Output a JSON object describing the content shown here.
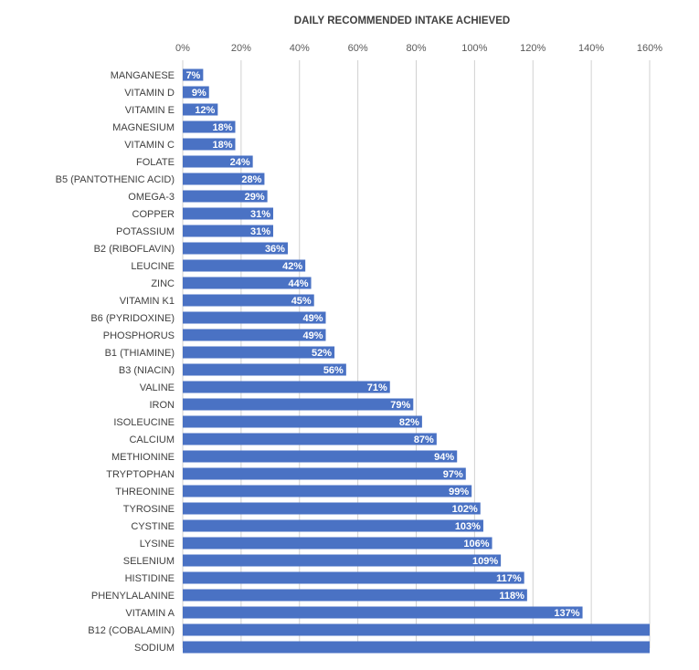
{
  "chart_data": {
    "type": "bar",
    "orientation": "horizontal",
    "title": "DAILY RECOMMENDED INTAKE ACHIEVED",
    "xlabel": "",
    "ylabel": "",
    "xlim": [
      0,
      160
    ],
    "x_ticks": [
      "0%",
      "20%",
      "40%",
      "60%",
      "80%",
      "100%",
      "120%",
      "140%",
      "160%"
    ],
    "grid": true,
    "legend": "none",
    "bar_color": "#4a72c4",
    "categories": [
      "MANGANESE",
      "VITAMIN D",
      "VITAMIN E",
      "MAGNESIUM",
      "VITAMIN C",
      "FOLATE",
      "B5 (PANTOTHENIC ACID)",
      "OMEGA-3",
      "COPPER",
      "POTASSIUM",
      "B2 (RIBOFLAVIN)",
      "LEUCINE",
      "ZINC",
      "VITAMIN K1",
      "B6 (PYRIDOXINE)",
      "PHOSPHORUS",
      "B1 (THIAMINE)",
      "B3 (NIACIN)",
      "VALINE",
      "IRON",
      "ISOLEUCINE",
      "CALCIUM",
      "METHIONINE",
      "TRYPTOPHAN",
      "THREONINE",
      "TYROSINE",
      "CYSTINE",
      "LYSINE",
      "SELENIUM",
      "HISTIDINE",
      "PHENYLALANINE",
      "VITAMIN A",
      "B12 (COBALAMIN)",
      "SODIUM"
    ],
    "values": [
      7,
      9,
      12,
      18,
      18,
      24,
      28,
      29,
      31,
      31,
      36,
      42,
      44,
      45,
      49,
      49,
      52,
      56,
      71,
      79,
      82,
      87,
      94,
      97,
      99,
      102,
      103,
      106,
      109,
      117,
      118,
      137,
      160,
      160
    ],
    "data_labels": [
      "7%",
      "9%",
      "12%",
      "18%",
      "18%",
      "24%",
      "28%",
      "29%",
      "31%",
      "31%",
      "36%",
      "42%",
      "44%",
      "45%",
      "49%",
      "49%",
      "52%",
      "56%",
      "71%",
      "79%",
      "82%",
      "87%",
      "94%",
      "97%",
      "99%",
      "102%",
      "103%",
      "106%",
      "109%",
      "117%",
      "118%",
      "137%",
      "",
      ""
    ]
  }
}
